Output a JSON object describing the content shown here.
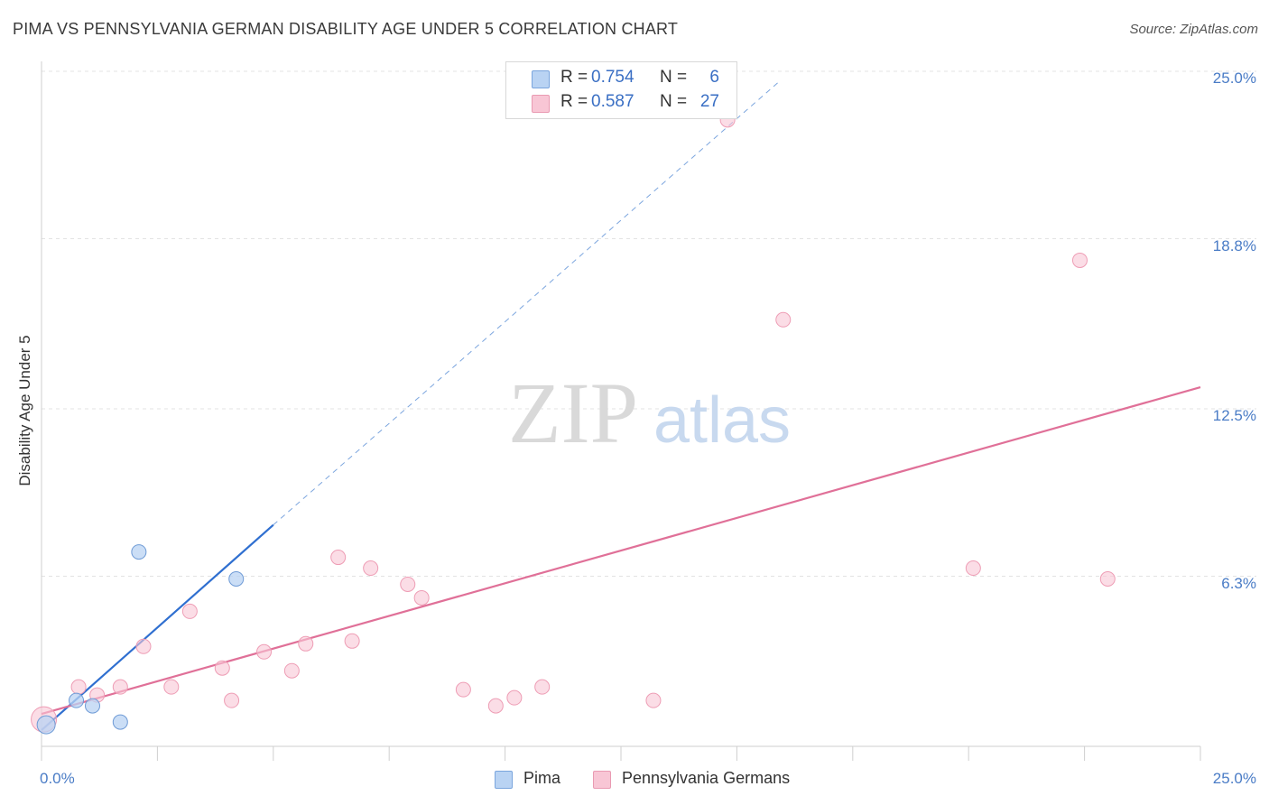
{
  "title": "PIMA VS PENNSYLVANIA GERMAN DISABILITY AGE UNDER 5 CORRELATION CHART",
  "source": "Source: ZipAtlas.com",
  "watermark": {
    "zip": "ZIP",
    "atlas": "atlas"
  },
  "colors": {
    "blue": "#5b8fd6",
    "blue_line": "#2f6fd0",
    "pink": "#f4a3bc",
    "pink_line": "#e07098",
    "tick_text": "#4a7cc6"
  },
  "legend_top": [
    {
      "r_label": "R =",
      "r_value": "0.754",
      "n_label": "N =",
      "n_value": "6"
    },
    {
      "r_label": "R =",
      "r_value": "0.587",
      "n_label": "N =",
      "n_value": "27"
    }
  ],
  "legend_bottom": [
    {
      "label": "Pima"
    },
    {
      "label": "Pennsylvania Germans"
    }
  ],
  "chart_data": {
    "type": "scatter",
    "title": "PIMA VS PENNSYLVANIA GERMAN DISABILITY AGE UNDER 5 CORRELATION CHART",
    "xlabel": "",
    "ylabel": "Disability Age Under 5",
    "xlim": [
      0,
      25
    ],
    "ylim": [
      0,
      25
    ],
    "x_tick_labels": [
      "0.0%",
      "25.0%"
    ],
    "y_tick_labels": [
      "6.3%",
      "12.5%",
      "18.8%",
      "25.0%"
    ],
    "y_tick_values": [
      6.3,
      12.5,
      18.8,
      25.0
    ],
    "series": [
      {
        "name": "Pima",
        "r": 0.754,
        "n": 6,
        "points": [
          {
            "x": 0.1,
            "y": 0.8
          },
          {
            "x": 0.75,
            "y": 1.7
          },
          {
            "x": 1.1,
            "y": 1.5
          },
          {
            "x": 1.7,
            "y": 0.9
          },
          {
            "x": 2.1,
            "y": 7.2
          },
          {
            "x": 4.2,
            "y": 6.2
          }
        ],
        "trend": {
          "x": [
            0,
            5.0
          ],
          "y": [
            0.6,
            8.2
          ]
        },
        "trend_extension": {
          "x": [
            5.0,
            15.9
          ],
          "y": [
            8.2,
            24.6
          ]
        }
      },
      {
        "name": "Pennsylvania Germans",
        "r": 0.587,
        "n": 27,
        "points": [
          {
            "x": 0.05,
            "y": 1.0
          },
          {
            "x": 0.8,
            "y": 2.2
          },
          {
            "x": 1.2,
            "y": 1.9
          },
          {
            "x": 1.7,
            "y": 2.2
          },
          {
            "x": 2.2,
            "y": 3.7
          },
          {
            "x": 2.8,
            "y": 2.2
          },
          {
            "x": 3.2,
            "y": 5.0
          },
          {
            "x": 3.9,
            "y": 2.9
          },
          {
            "x": 4.1,
            "y": 1.7
          },
          {
            "x": 4.8,
            "y": 3.5
          },
          {
            "x": 5.4,
            "y": 2.8
          },
          {
            "x": 5.7,
            "y": 3.8
          },
          {
            "x": 6.4,
            "y": 7.0
          },
          {
            "x": 6.7,
            "y": 3.9
          },
          {
            "x": 7.1,
            "y": 6.6
          },
          {
            "x": 7.9,
            "y": 6.0
          },
          {
            "x": 8.2,
            "y": 5.5
          },
          {
            "x": 9.1,
            "y": 2.1
          },
          {
            "x": 9.8,
            "y": 1.5
          },
          {
            "x": 10.2,
            "y": 1.8
          },
          {
            "x": 10.8,
            "y": 2.2
          },
          {
            "x": 13.2,
            "y": 1.7
          },
          {
            "x": 14.8,
            "y": 23.2
          },
          {
            "x": 16.0,
            "y": 15.8
          },
          {
            "x": 20.1,
            "y": 6.6
          },
          {
            "x": 22.4,
            "y": 18.0
          },
          {
            "x": 23.0,
            "y": 6.2
          }
        ],
        "trend": {
          "x": [
            0,
            25
          ],
          "y": [
            1.2,
            13.3
          ]
        }
      }
    ]
  }
}
